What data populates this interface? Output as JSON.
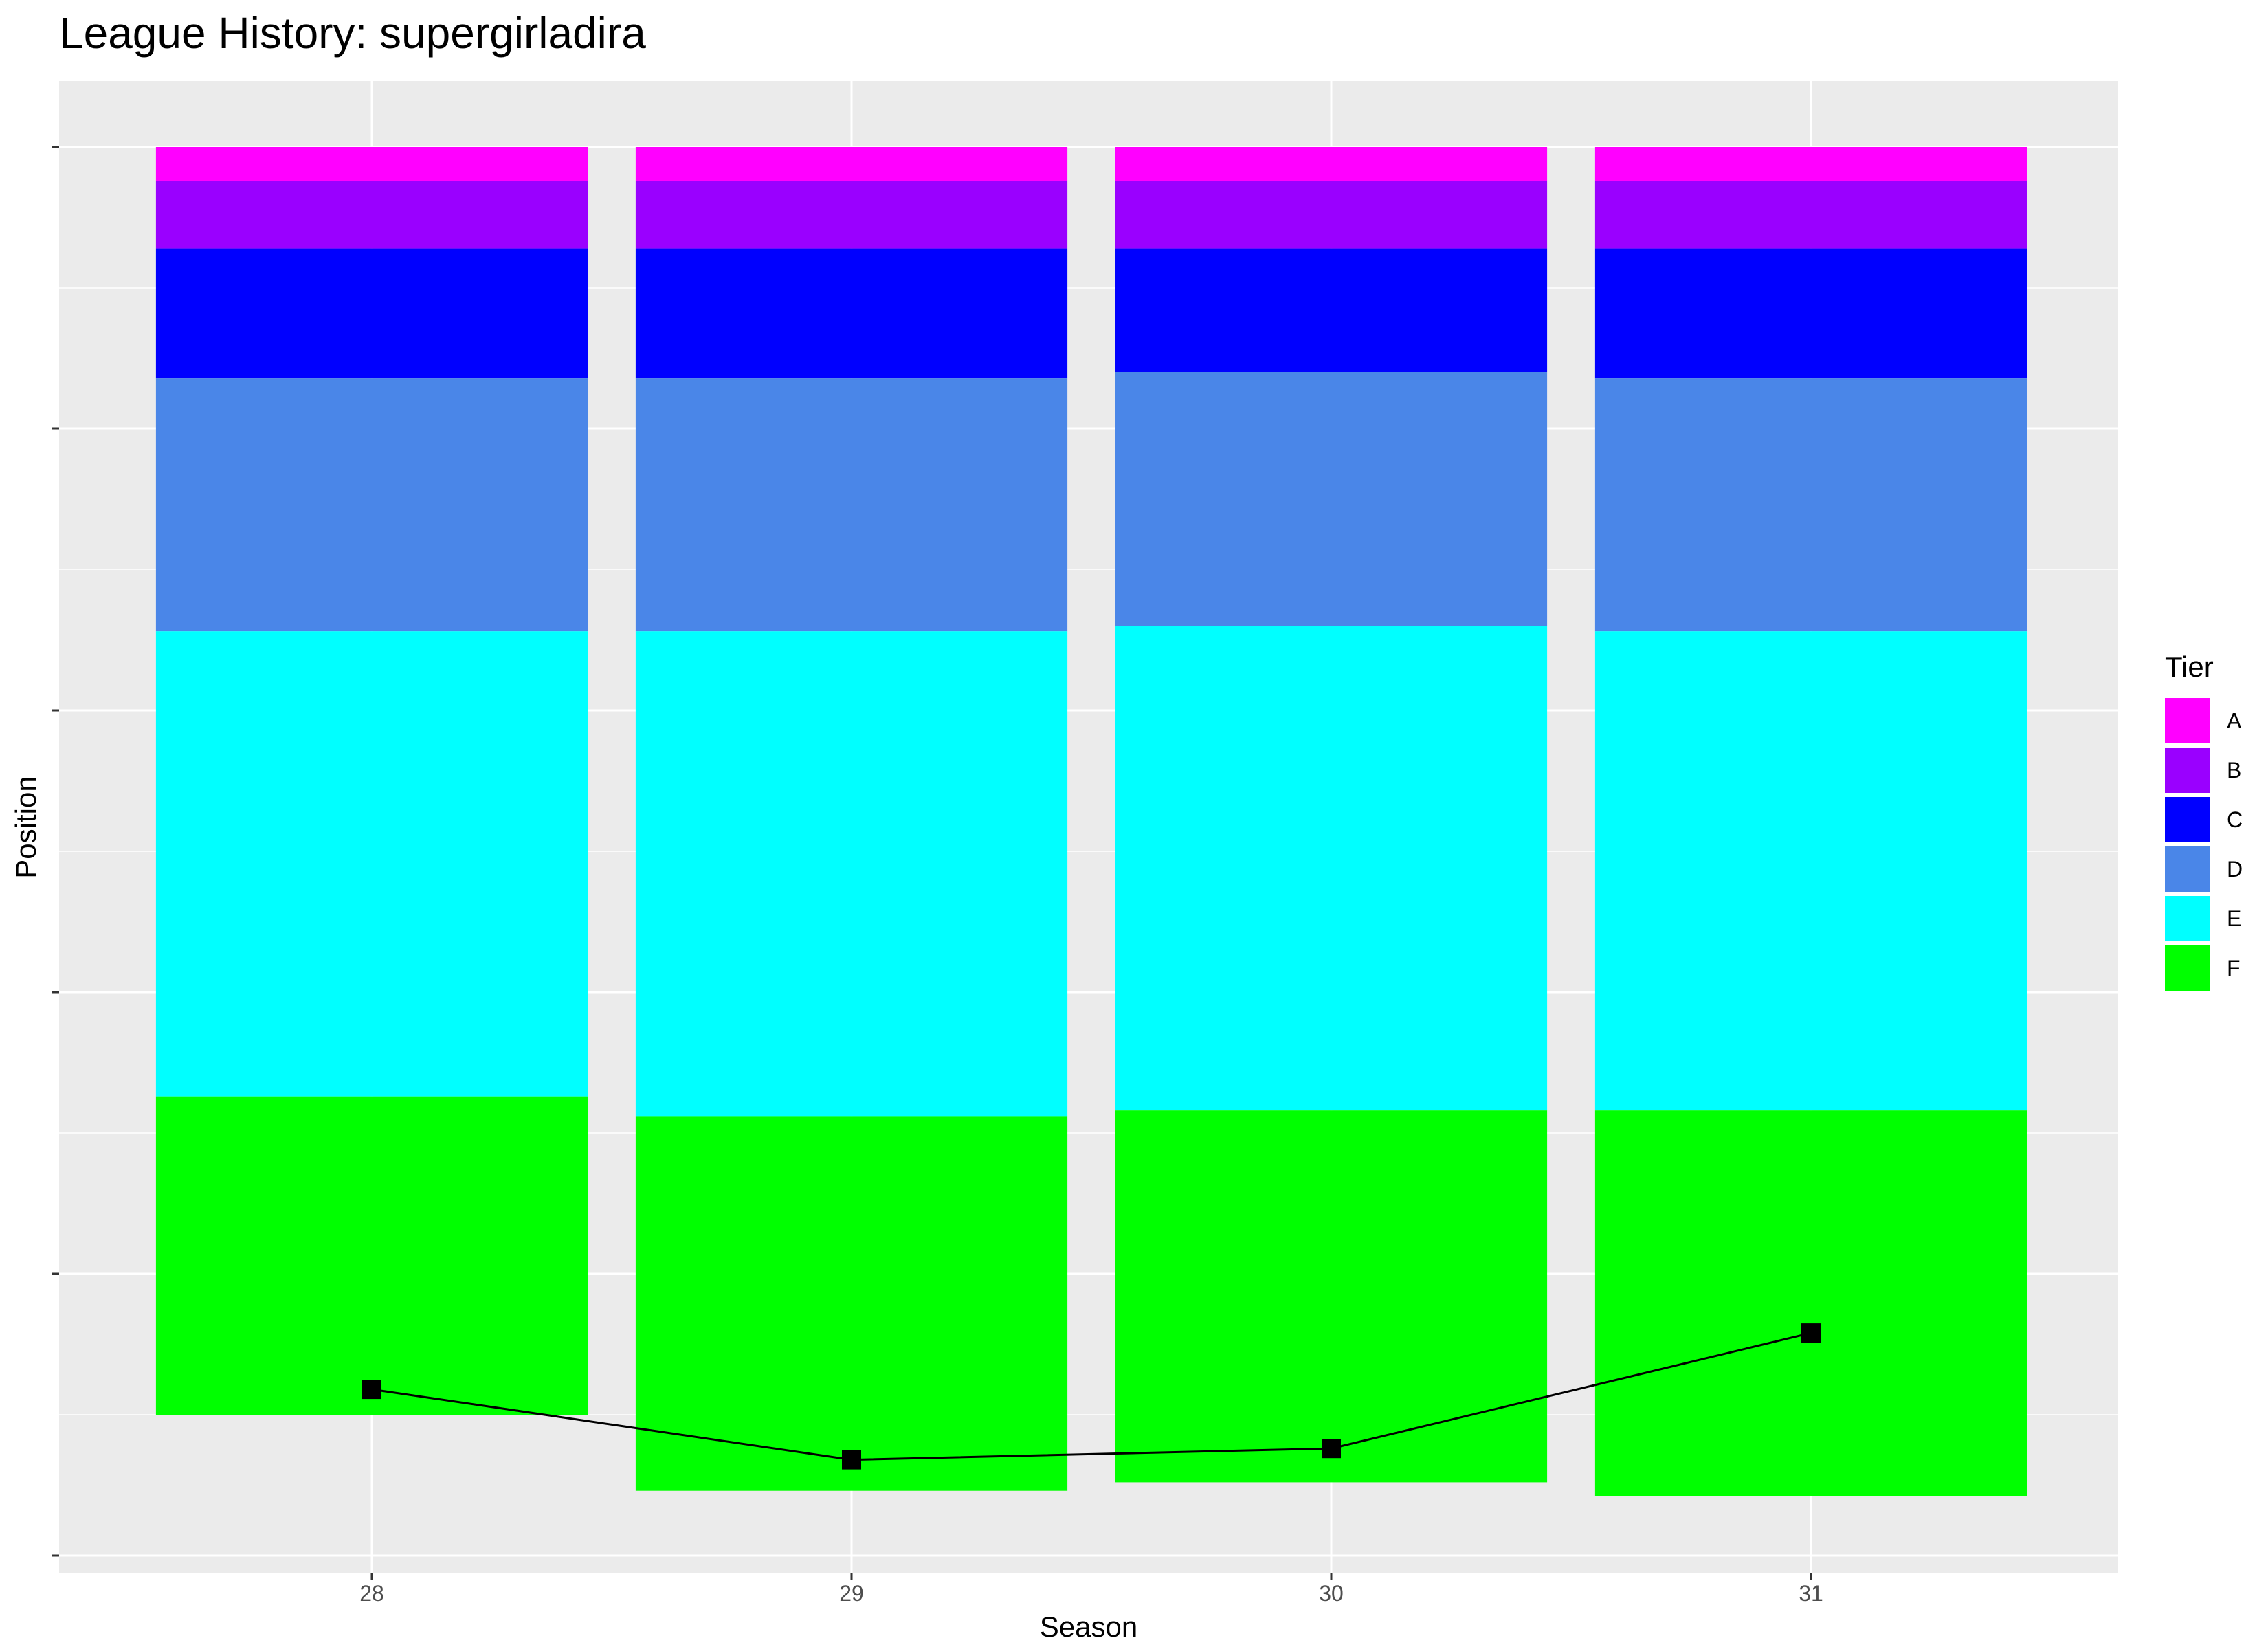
{
  "chart_data": {
    "type": "bar",
    "stacked": true,
    "title": "League History: supergirladira",
    "xlabel": "Season",
    "ylabel": "Position",
    "categories": [
      "28",
      "29",
      "30",
      "31"
    ],
    "y_reversed": true,
    "ylim": [
      0,
      500
    ],
    "y_ticks": [
      0,
      100,
      200,
      300,
      400,
      500
    ],
    "y_tick_labels_shown": false,
    "grid": true,
    "legend": {
      "title": "Tier",
      "placement": "right",
      "entries": [
        {
          "name": "A",
          "color": "#FF00FF"
        },
        {
          "name": "B",
          "color": "#9A00FF"
        },
        {
          "name": "C",
          "color": "#0000FF"
        },
        {
          "name": "D",
          "color": "#4A86E8"
        },
        {
          "name": "E",
          "color": "#00FFFF"
        },
        {
          "name": "F",
          "color": "#00FF00"
        }
      ]
    },
    "series": [
      {
        "name": "A",
        "values": [
          12,
          12,
          12,
          12
        ]
      },
      {
        "name": "B",
        "values": [
          24,
          24,
          24,
          24
        ]
      },
      {
        "name": "C",
        "values": [
          46,
          46,
          44,
          46
        ]
      },
      {
        "name": "D",
        "values": [
          90,
          90,
          90,
          90
        ]
      },
      {
        "name": "E",
        "values": [
          165,
          172,
          172,
          170
        ]
      },
      {
        "name": "F",
        "values": [
          113,
          133,
          132,
          137
        ]
      }
    ],
    "position_line": {
      "color": "#000000",
      "values": [
        441,
        466,
        462,
        421
      ]
    }
  }
}
